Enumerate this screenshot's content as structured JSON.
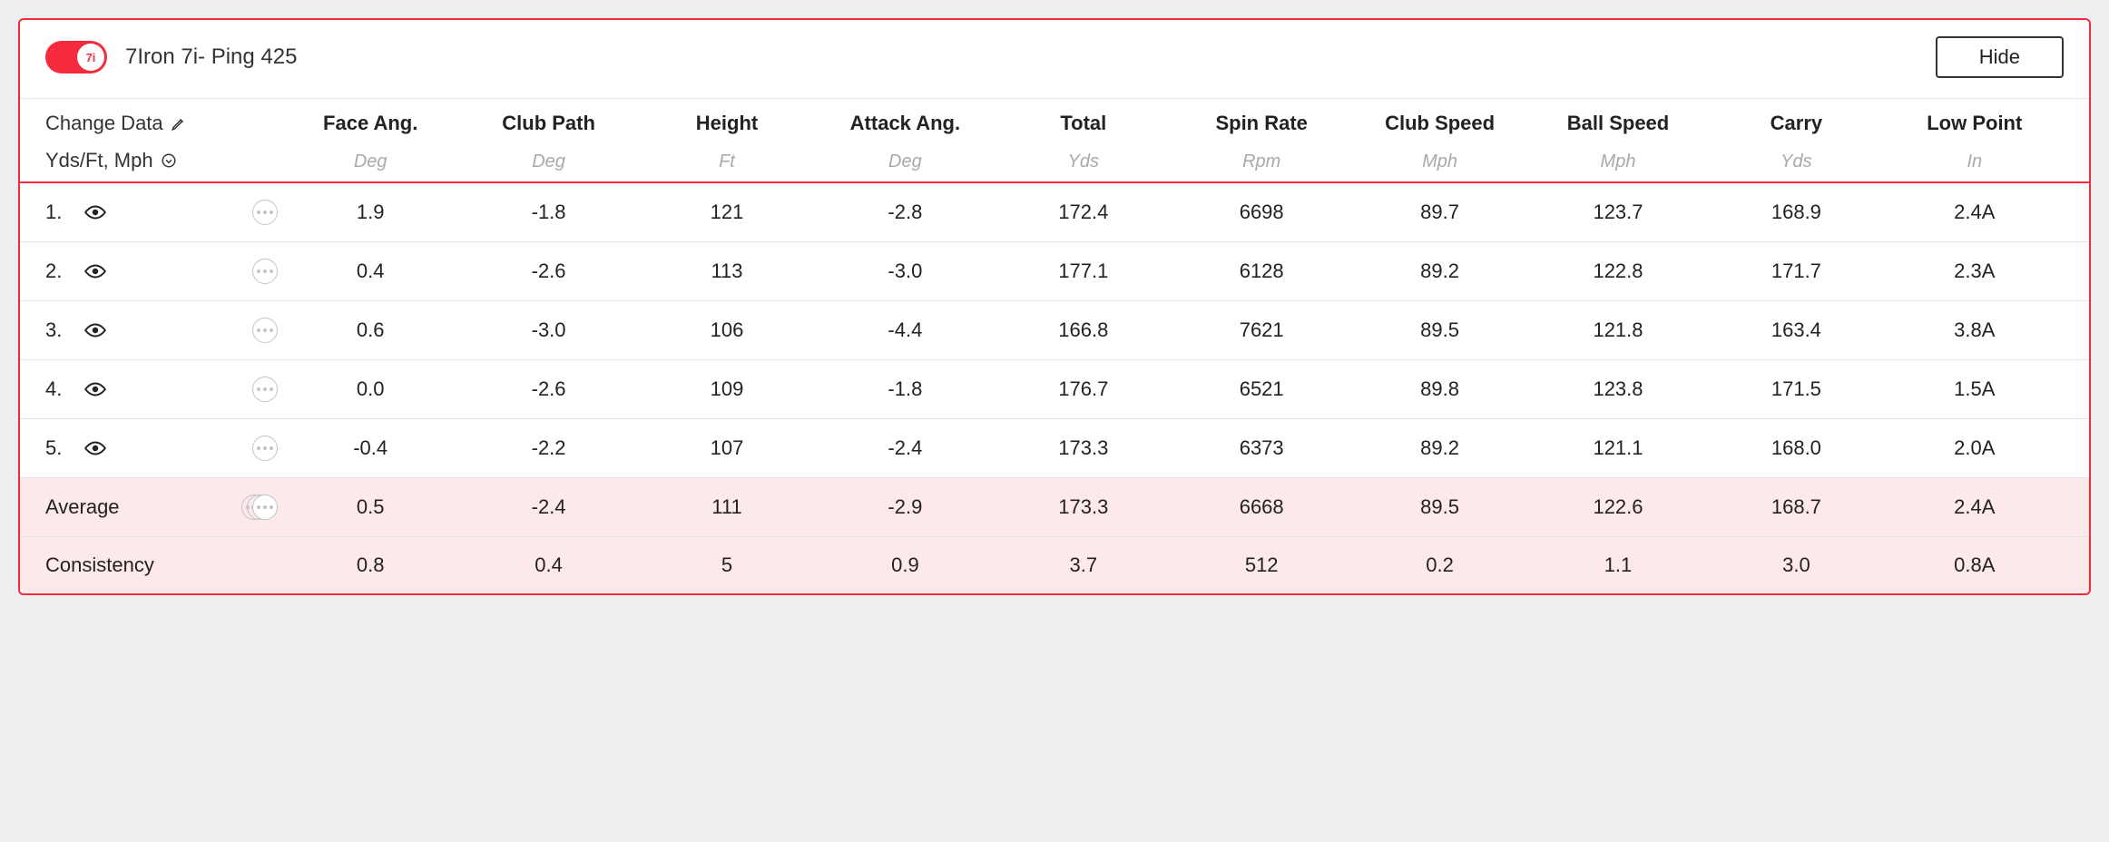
{
  "header": {
    "toggle_label": "7i",
    "club_name": "7Iron 7i- Ping 425",
    "hide_label": "Hide"
  },
  "subheader": {
    "change_data": "Change Data",
    "units_label": "Yds/Ft, Mph"
  },
  "columns": [
    {
      "label": "Face Ang.",
      "unit": "Deg"
    },
    {
      "label": "Club Path",
      "unit": "Deg"
    },
    {
      "label": "Height",
      "unit": "Ft"
    },
    {
      "label": "Attack Ang.",
      "unit": "Deg"
    },
    {
      "label": "Total",
      "unit": "Yds"
    },
    {
      "label": "Spin Rate",
      "unit": "Rpm"
    },
    {
      "label": "Club Speed",
      "unit": "Mph"
    },
    {
      "label": "Ball Speed",
      "unit": "Mph"
    },
    {
      "label": "Carry",
      "unit": "Yds"
    },
    {
      "label": "Low Point",
      "unit": "In"
    }
  ],
  "shots": [
    {
      "n": "1.",
      "v": [
        "1.9",
        "-1.8",
        "121",
        "-2.8",
        "172.4",
        "6698",
        "89.7",
        "123.7",
        "168.9",
        "2.4A"
      ]
    },
    {
      "n": "2.",
      "v": [
        "0.4",
        "-2.6",
        "113",
        "-3.0",
        "177.1",
        "6128",
        "89.2",
        "122.8",
        "171.7",
        "2.3A"
      ]
    },
    {
      "n": "3.",
      "v": [
        "0.6",
        "-3.0",
        "106",
        "-4.4",
        "166.8",
        "7621",
        "89.5",
        "121.8",
        "163.4",
        "3.8A"
      ]
    },
    {
      "n": "4.",
      "v": [
        "0.0",
        "-2.6",
        "109",
        "-1.8",
        "176.7",
        "6521",
        "89.8",
        "123.8",
        "171.5",
        "1.5A"
      ]
    },
    {
      "n": "5.",
      "v": [
        "-0.4",
        "-2.2",
        "107",
        "-2.4",
        "173.3",
        "6373",
        "89.2",
        "121.1",
        "168.0",
        "2.0A"
      ]
    }
  ],
  "summary": {
    "average_label": "Average",
    "average": [
      "0.5",
      "-2.4",
      "111",
      "-2.9",
      "173.3",
      "6668",
      "89.5",
      "122.6",
      "168.7",
      "2.4A"
    ],
    "consistency_label": "Consistency",
    "consistency": [
      "0.8",
      "0.4",
      "5",
      "0.9",
      "3.7",
      "512",
      "0.2",
      "1.1",
      "3.0",
      "0.8A"
    ]
  },
  "colors": {
    "accent": "#f52a3d",
    "border": "#e2e4e8",
    "subtle_text": "#a8a9ad",
    "summary_bg": "#fde8ea",
    "page_bg": "#eceef0"
  }
}
